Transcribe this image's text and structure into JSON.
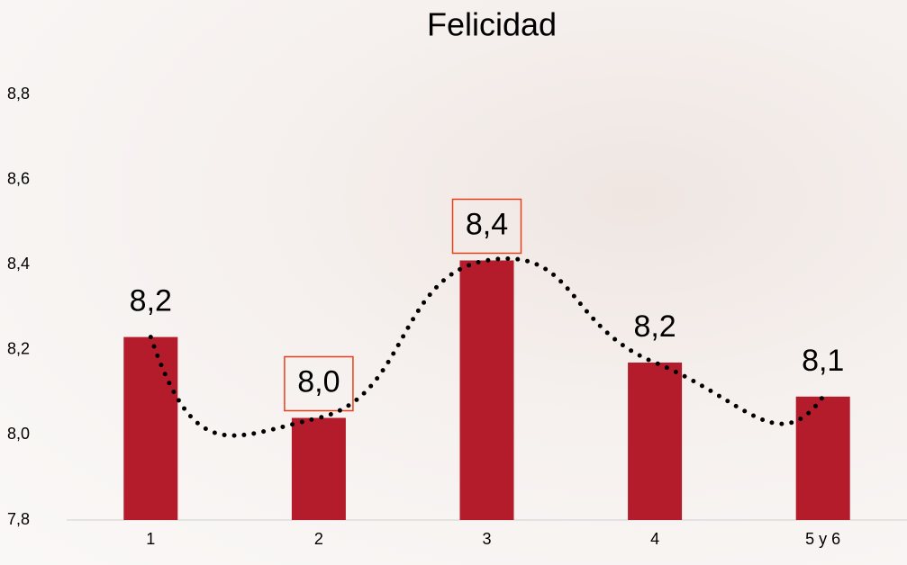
{
  "chart_data": {
    "type": "bar",
    "title": "Felicidad",
    "categories": [
      "1",
      "2",
      "3",
      "4",
      "5 y 6"
    ],
    "values": [
      8.23,
      8.04,
      8.41,
      8.17,
      8.09
    ],
    "value_labels": [
      "8,2",
      "8,0",
      "8,4",
      "8,2",
      "8,1"
    ],
    "color": "#b41c2b",
    "trend_line_color": "#000000",
    "highlighted_labels": [
      1,
      2
    ],
    "highlight_color": "#e8401c",
    "ylim": [
      7.8,
      8.8
    ],
    "yticks": [
      {
        "value": 7.8,
        "label": "7,8"
      },
      {
        "value": 8.0,
        "label": "8,0"
      },
      {
        "value": 8.2,
        "label": "8,2"
      },
      {
        "value": 8.4,
        "label": "8,4"
      },
      {
        "value": 8.6,
        "label": "8,6"
      },
      {
        "value": 8.8,
        "label": "8,8"
      }
    ],
    "grid": false
  }
}
